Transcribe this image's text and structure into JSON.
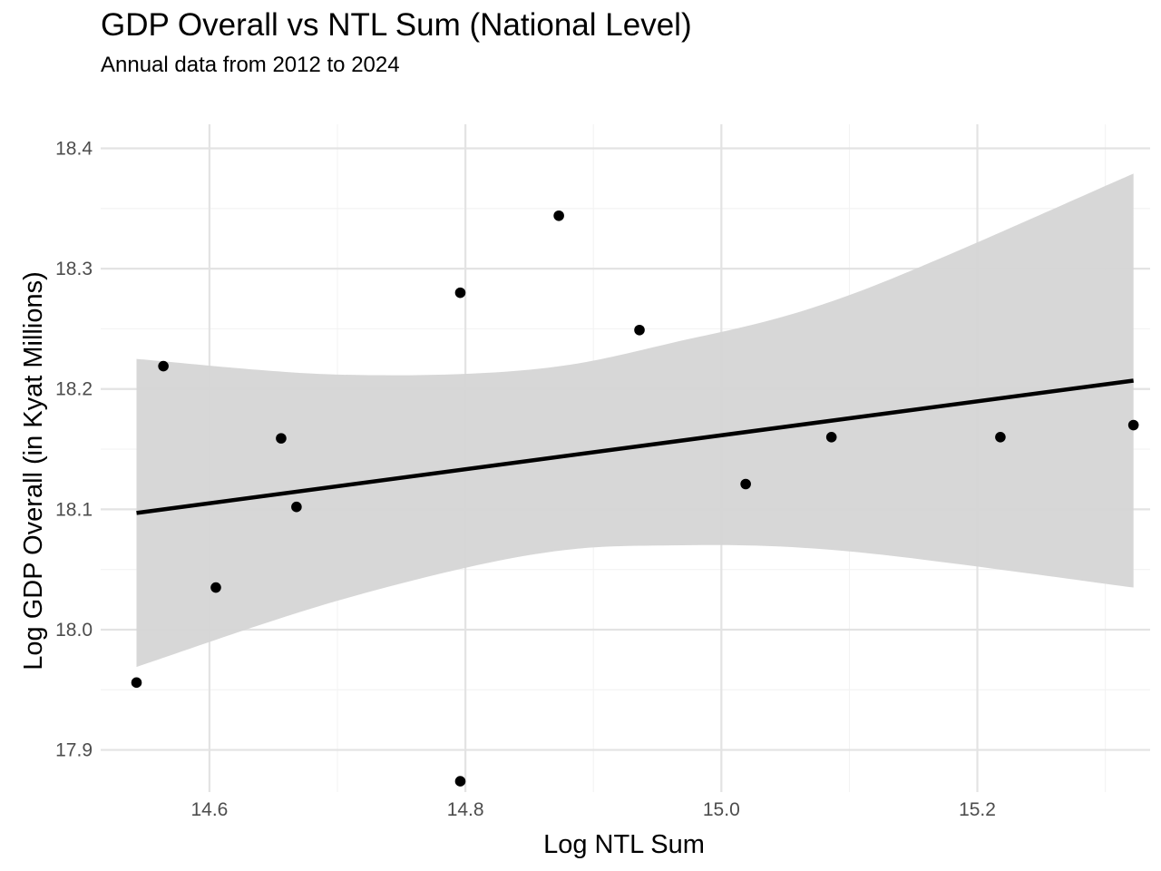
{
  "chart_data": {
    "type": "scatter",
    "title": "GDP Overall vs NTL Sum (National Level)",
    "subtitle": "Annual data from 2012 to 2024",
    "xlabel": "Log NTL Sum",
    "ylabel": "Log GDP Overall (in Kyat Millions)",
    "xlim": [
      14.515,
      15.335
    ],
    "ylim": [
      17.865,
      18.42
    ],
    "x_ticks": [
      14.6,
      14.8,
      15.0,
      15.2
    ],
    "x_tick_labels": [
      "14.6",
      "14.8",
      "15.0",
      "15.2"
    ],
    "y_ticks": [
      17.9,
      18.0,
      18.1,
      18.2,
      18.3,
      18.4
    ],
    "y_tick_labels": [
      "17.9",
      "18.0",
      "18.1",
      "18.2",
      "18.3",
      "18.4"
    ],
    "grid": true,
    "legend": "none",
    "points": [
      {
        "x": 14.543,
        "y": 17.956
      },
      {
        "x": 14.564,
        "y": 18.219
      },
      {
        "x": 14.605,
        "y": 18.035
      },
      {
        "x": 14.656,
        "y": 18.159
      },
      {
        "x": 14.668,
        "y": 18.102
      },
      {
        "x": 14.796,
        "y": 18.28
      },
      {
        "x": 14.796,
        "y": 17.874
      },
      {
        "x": 14.873,
        "y": 18.344
      },
      {
        "x": 14.936,
        "y": 18.249
      },
      {
        "x": 15.019,
        "y": 18.121
      },
      {
        "x": 15.086,
        "y": 18.16
      },
      {
        "x": 15.218,
        "y": 18.16
      },
      {
        "x": 15.322,
        "y": 18.17
      }
    ],
    "regression_line": {
      "x": [
        14.543,
        15.322
      ],
      "y": [
        18.097,
        18.207
      ]
    },
    "confidence_band": {
      "x": [
        14.543,
        14.7,
        14.85,
        14.96,
        15.1,
        15.322
      ],
      "upper": [
        18.225,
        18.212,
        18.216,
        18.238,
        18.278,
        18.379
      ],
      "lower": [
        17.969,
        18.024,
        18.062,
        18.07,
        18.065,
        18.035
      ]
    },
    "colors": {
      "point": "#000000",
      "line": "#000000",
      "band": "#d5d5d5"
    }
  }
}
